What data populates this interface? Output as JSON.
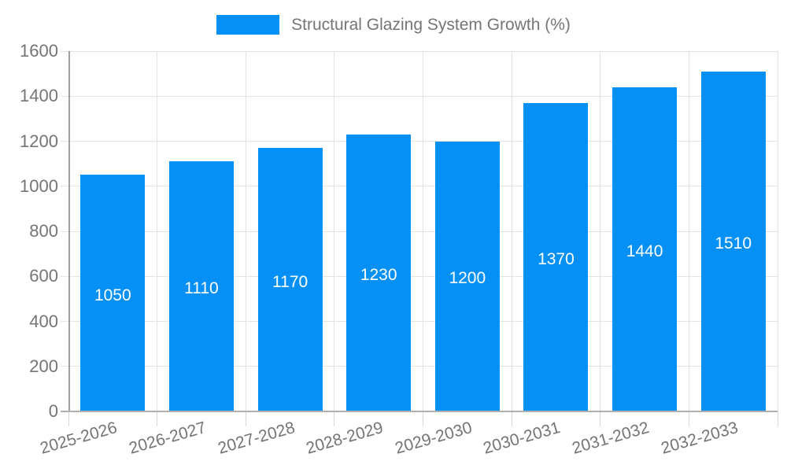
{
  "legend": {
    "label": "Structural Glazing System Growth (%)",
    "swatch_color": "#0590f5"
  },
  "chart_data": {
    "type": "bar",
    "title": "Structural Glazing System Growth (%)",
    "categories": [
      "2025-2026",
      "2026-2027",
      "2027-2028",
      "2028-2029",
      "2029-2030",
      "2030-2031",
      "2031-2032",
      "2032-2033"
    ],
    "values": [
      1050,
      1110,
      1170,
      1230,
      1200,
      1370,
      1440,
      1510
    ],
    "bar_labels": [
      "1050",
      "1110",
      "1170",
      "1230",
      "1200",
      "1370",
      "1440",
      "1510"
    ],
    "xlabel": "",
    "ylabel": "",
    "ylim": [
      0,
      1600
    ],
    "ytick_step": 200,
    "ytick_labels": [
      "0",
      "200",
      "400",
      "600",
      "800",
      "1000",
      "1200",
      "1400",
      "1600"
    ],
    "grid": true,
    "legend_position": "top-center",
    "colors": {
      "bar": "#0590f5",
      "bar_label": "#ffffff",
      "axis_text": "#757575",
      "gridline": "#e3e3e3",
      "axis_line": "#9e9e9e"
    }
  }
}
